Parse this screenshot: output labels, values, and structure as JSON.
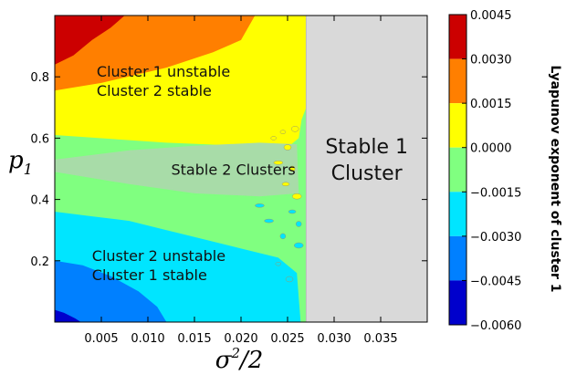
{
  "chart_data": {
    "type": "heatmap",
    "xlabel": "σ²/2",
    "ylabel": "p₁",
    "xlim": [
      0.0,
      0.04
    ],
    "ylim": [
      0.0,
      1.0
    ],
    "x_ticks": [
      "0.005",
      "0.010",
      "0.015",
      "0.020",
      "0.025",
      "0.030",
      "0.035"
    ],
    "x_tick_values": [
      0.005,
      0.01,
      0.015,
      0.02,
      0.025,
      0.03,
      0.035
    ],
    "y_ticks": [
      "0.2",
      "0.4",
      "0.6",
      "0.8"
    ],
    "y_tick_values": [
      0.2,
      0.4,
      0.6,
      0.8
    ],
    "stable_boundary_x": 0.027,
    "regions": [
      {
        "line1": "Cluster 1 unstable",
        "line2": "Cluster 2 stable",
        "x": 0.0045,
        "y": 0.8
      },
      {
        "line1": "Stable 2 Clusters",
        "line2": "",
        "x": 0.0125,
        "y": 0.48
      },
      {
        "line1": "Cluster 2 unstable",
        "line2": "Cluster 1 stable",
        "x": 0.004,
        "y": 0.2
      },
      {
        "line1": "Stable 1",
        "line2": "Cluster",
        "x": 0.0335,
        "y": 0.55
      }
    ],
    "colorbar": {
      "label": "Lyapunov exponent of cluster 1",
      "tick_labels": [
        "0.0045",
        "0.0030",
        "0.0015",
        "0.0000",
        "−0.0015",
        "−0.0030",
        "−0.0045",
        "−0.0060"
      ],
      "levels": [
        0.0045,
        0.003,
        0.0015,
        0.0,
        -0.0015,
        -0.003,
        -0.0045,
        -0.006
      ],
      "colors": [
        "#cc0000",
        "#ff7f00",
        "#ffff00",
        "#80ff80",
        "#00e5ff",
        "#0080ff",
        "#0000cc"
      ]
    },
    "stable_region_color": "#d9d9d9",
    "stable_2_color": "#a8dca8"
  }
}
